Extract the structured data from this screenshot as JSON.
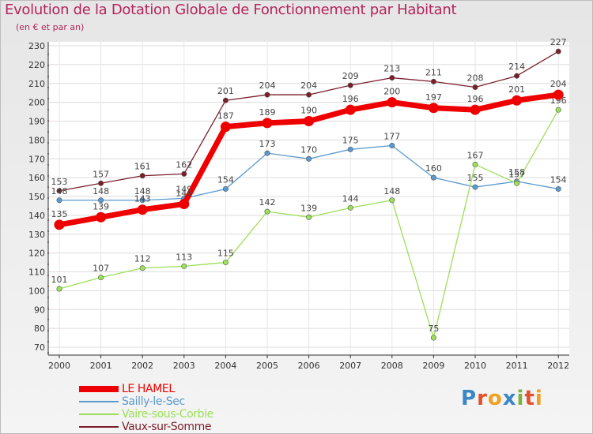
{
  "header": {
    "title": "Evolution de la Dotation Globale de Fonctionnement par Habitant",
    "subtitle": "(en € et par an)"
  },
  "brand": {
    "logo_text": "Proxiti",
    "letter_colors": [
      "#3b86c6",
      "#e2502c",
      "#f0a020",
      "#3b86c6",
      "#7cb23a",
      "#e2502c",
      "#f0a020"
    ]
  },
  "chart_data": {
    "type": "line",
    "title": "Evolution de la Dotation Globale de Fonctionnement par Habitant",
    "subtitle": "(en € et par an)",
    "xlabel": "",
    "ylabel": "",
    "ylim": [
      70,
      230
    ],
    "ytick_step": 10,
    "grid": true,
    "legend_position": "bottom-left",
    "categories": [
      "2000",
      "2001",
      "2002",
      "2003",
      "2004",
      "2005",
      "2006",
      "2007",
      "2008",
      "2009",
      "2010",
      "2011",
      "2012"
    ],
    "series": [
      {
        "name": "Vaux-sur-Somme",
        "color": "#7a1e2a",
        "values": [
          153,
          157,
          161,
          162,
          201,
          204,
          204,
          209,
          213,
          211,
          208,
          214,
          227
        ]
      },
      {
        "name": "Sailly-le-Sec",
        "color": "#5a9ad0",
        "values": [
          148,
          148,
          148,
          149,
          154,
          173,
          170,
          175,
          177,
          160,
          155,
          158,
          154
        ]
      },
      {
        "name": "Vaire-sous-Corbie",
        "color": "#9be058",
        "values": [
          101,
          107,
          112,
          113,
          115,
          142,
          139,
          144,
          148,
          75,
          167,
          157,
          196
        ]
      },
      {
        "name": "LE HAMEL",
        "color": "#ee0000",
        "values": [
          135,
          139,
          143,
          146,
          187,
          189,
          190,
          196,
          200,
          197,
          196,
          201,
          204
        ]
      }
    ]
  },
  "legend": {
    "items": [
      {
        "name": "LE HAMEL",
        "color": "#ee0000"
      },
      {
        "name": "Sailly-le-Sec",
        "color": "#5a9ad0"
      },
      {
        "name": "Vaire-sous-Corbie",
        "color": "#9be058"
      },
      {
        "name": "Vaux-sur-Somme",
        "color": "#7a1e2a"
      }
    ]
  }
}
